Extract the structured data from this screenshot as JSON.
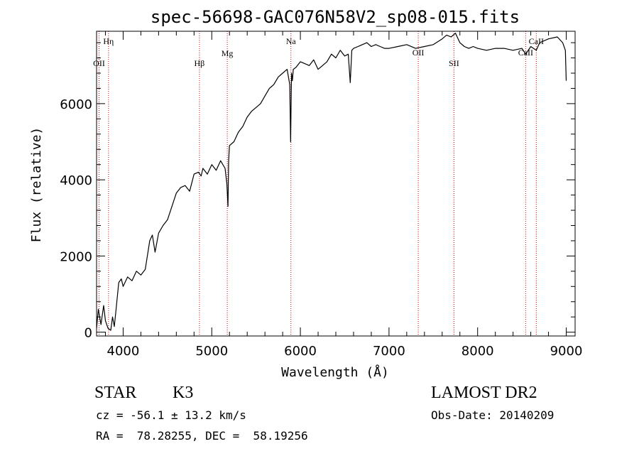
{
  "chart_data": {
    "type": "line",
    "title": "spec-56698-GAC076N58V2_sp08-015.fits",
    "xlabel": "Wavelength (Å)",
    "ylabel": "Flux (relative)",
    "xlim": [
      3700,
      9100
    ],
    "ylim": [
      -100,
      7900
    ],
    "x_ticks": [
      4000,
      5000,
      6000,
      7000,
      8000,
      9000
    ],
    "y_ticks": [
      0,
      2000,
      4000,
      6000
    ],
    "series": [
      {
        "x": [
          3700,
          3720,
          3750,
          3780,
          3800,
          3830,
          3860,
          3880,
          3900,
          3920,
          3950,
          3980,
          4000,
          4050,
          4100,
          4150,
          4200,
          4250,
          4300,
          4330,
          4360,
          4400,
          4450,
          4500,
          4550,
          4600,
          4650,
          4700,
          4750,
          4800,
          4850,
          4880,
          4900,
          4950,
          5000,
          5050,
          5100,
          5150,
          5170,
          5183,
          5190,
          5200,
          5250,
          5300,
          5350,
          5400,
          5450,
          5500,
          5550,
          5600,
          5650,
          5700,
          5750,
          5800,
          5850,
          5880,
          5890,
          5900,
          5910,
          5920,
          5950,
          6000,
          6050,
          6100,
          6150,
          6200,
          6250,
          6300,
          6350,
          6400,
          6450,
          6500,
          6540,
          6563,
          6580,
          6600,
          6650,
          6700,
          6750,
          6800,
          6850,
          6900,
          6950,
          7000,
          7100,
          7200,
          7300,
          7400,
          7500,
          7600,
          7650,
          7700,
          7750,
          7800,
          7850,
          7900,
          7950,
          8000,
          8100,
          8200,
          8300,
          8400,
          8500,
          8542,
          8600,
          8662,
          8700,
          8800,
          8900,
          8960,
          8990,
          9000
        ],
        "y": [
          100,
          600,
          200,
          700,
          300,
          100,
          50,
          400,
          150,
          600,
          1300,
          1400,
          1200,
          1450,
          1350,
          1600,
          1500,
          1650,
          2400,
          2550,
          2100,
          2600,
          2800,
          2950,
          3300,
          3650,
          3800,
          3850,
          3700,
          4150,
          4200,
          4100,
          4300,
          4150,
          4400,
          4250,
          4500,
          4300,
          3900,
          3300,
          4500,
          4900,
          5000,
          5250,
          5400,
          5650,
          5800,
          5900,
          6000,
          6200,
          6400,
          6500,
          6700,
          6800,
          6900,
          6500,
          5000,
          6800,
          6600,
          6900,
          6950,
          7100,
          7050,
          7000,
          7150,
          6900,
          7000,
          7100,
          7300,
          7200,
          7400,
          7250,
          7300,
          6550,
          7400,
          7450,
          7500,
          7550,
          7600,
          7500,
          7550,
          7500,
          7450,
          7450,
          7500,
          7550,
          7450,
          7500,
          7550,
          7700,
          7800,
          7750,
          7850,
          7600,
          7500,
          7450,
          7500,
          7450,
          7400,
          7450,
          7450,
          7400,
          7450,
          7300,
          7500,
          7400,
          7600,
          7700,
          7750,
          7600,
          7400,
          6600
        ]
      }
    ],
    "line_marks": [
      {
        "label": "OII",
        "x": 3728
      },
      {
        "label": "Hη",
        "x": 3835
      },
      {
        "label": "Hβ",
        "x": 4861
      },
      {
        "label": "Mg",
        "x": 5175
      },
      {
        "label": "Na",
        "x": 5893
      },
      {
        "label": "OII",
        "x": 7330
      },
      {
        "label": "SII",
        "x": 7733
      },
      {
        "label": "CaII",
        "x": 8542
      },
      {
        "label": "CaII",
        "x": 8662
      }
    ],
    "line_color": "#000000",
    "mark_color": "#cc0000",
    "grid": false,
    "legend": "none"
  },
  "info": {
    "class_label": "STAR",
    "subclass_label": "K3",
    "survey": "LAMOST DR2",
    "cz": "cz = -56.1 ± 13.2 km/s",
    "obs_date": "Obs-Date: 20140209",
    "coords": "RA =  78.28255, DEC =  58.19256"
  }
}
